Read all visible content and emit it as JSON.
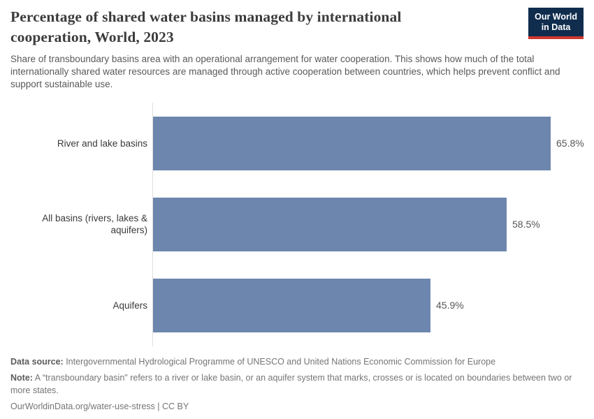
{
  "header": {
    "title": "Percentage of shared water basins managed by international cooperation, World, 2023",
    "logo": {
      "line1": "Our World",
      "line2": "in Data"
    }
  },
  "subtitle": "Share of transboundary basins area with an operational arrangement for water cooperation. This shows how much of the total internationally shared water resources are managed through active cooperation between countries, which helps prevent conflict and support sustainable use.",
  "chart_data": {
    "type": "bar",
    "orientation": "horizontal",
    "title": "Percentage of shared water basins managed by international cooperation, World, 2023",
    "categories": [
      "River and lake basins",
      "All basins (rivers, lakes & aquifers)",
      "Aquifers"
    ],
    "values": [
      65.8,
      58.5,
      45.9
    ],
    "value_labels": [
      "65.8%",
      "58.5%",
      "45.9%"
    ],
    "xlabel": "",
    "ylabel": "",
    "xlim": [
      0,
      72
    ],
    "grid": false,
    "legend": false,
    "bar_color": "#6d86ae",
    "axis_line_color": "#dedede"
  },
  "footer": {
    "data_source_label": "Data source:",
    "data_source_text": " Intergovernmental Hydrological Programme of UNESCO and United Nations Economic Commission for Europe",
    "note_label": "Note:",
    "note_text": " A “transboundary basin\" refers to a river or lake basin, or an aquifer system that marks, crosses or is located on boundaries between two or more states.",
    "url": "OurWorldinData.org/water-use-stress | CC BY"
  },
  "colors": {
    "logo_background": "#102d4e",
    "logo_underline": "#d0382d",
    "title_text": "#3c3c3c",
    "subtitle_text": "#595959",
    "bar": "#6d86ae"
  }
}
